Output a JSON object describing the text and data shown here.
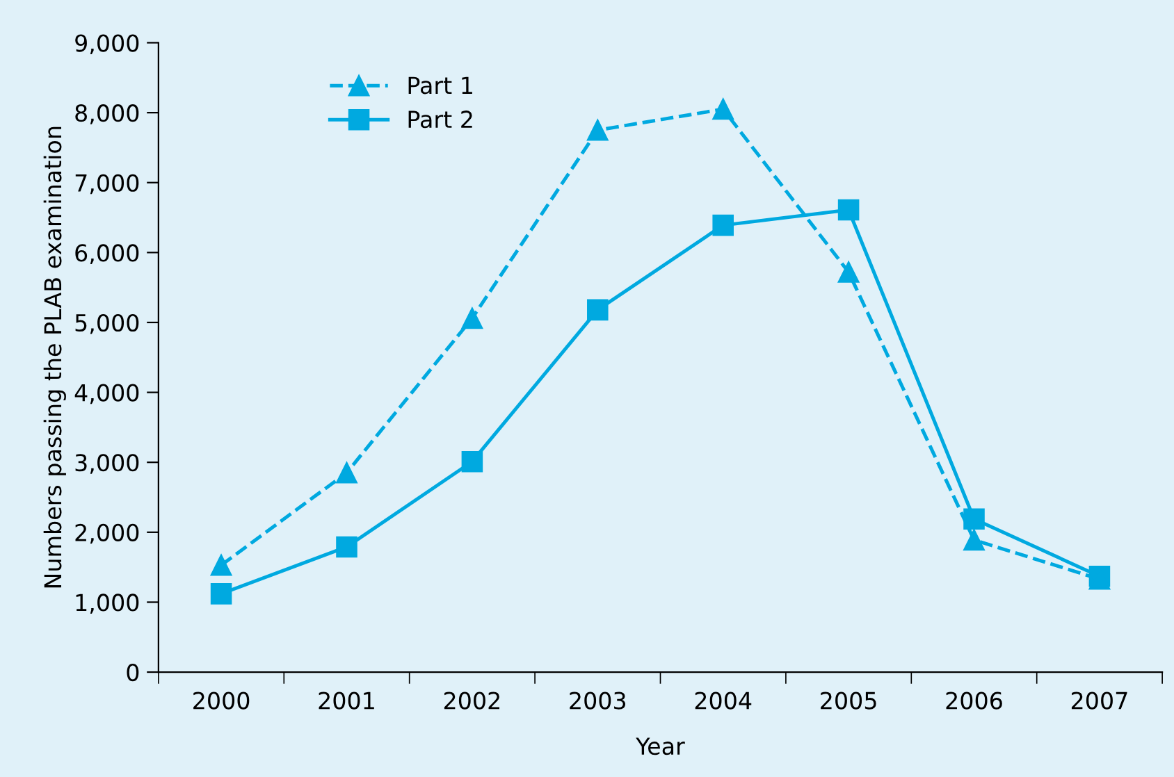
{
  "chart_data": {
    "type": "line",
    "xlabel": "Year",
    "ylabel": "Numbers passing the PLAB examination",
    "categories": [
      "2000",
      "2001",
      "2002",
      "2003",
      "2004",
      "2005",
      "2006",
      "2007"
    ],
    "series": [
      {
        "name": "Part 1",
        "color": "#00a9e0",
        "marker": "triangle",
        "line_style": "dashed",
        "values": [
          1530,
          2850,
          5060,
          7750,
          8050,
          5720,
          1890,
          1330
        ]
      },
      {
        "name": "Part 2",
        "color": "#00a9e0",
        "marker": "square",
        "line_style": "solid",
        "values": [
          1120,
          1790,
          3010,
          5180,
          6390,
          6610,
          2190,
          1370
        ]
      }
    ],
    "ylim": [
      0,
      9000
    ],
    "yticks": [
      {
        "value": 0,
        "label": "0"
      },
      {
        "value": 1000,
        "label": "1,000"
      },
      {
        "value": 2000,
        "label": "2,000"
      },
      {
        "value": 3000,
        "label": "3,000"
      },
      {
        "value": 4000,
        "label": "4,000"
      },
      {
        "value": 5000,
        "label": "5,000"
      },
      {
        "value": 6000,
        "label": "6,000"
      },
      {
        "value": 7000,
        "label": "7,000"
      },
      {
        "value": 8000,
        "label": "8,000"
      },
      {
        "value": 9000,
        "label": "9,000"
      }
    ],
    "grid": false,
    "legend": "top left"
  }
}
